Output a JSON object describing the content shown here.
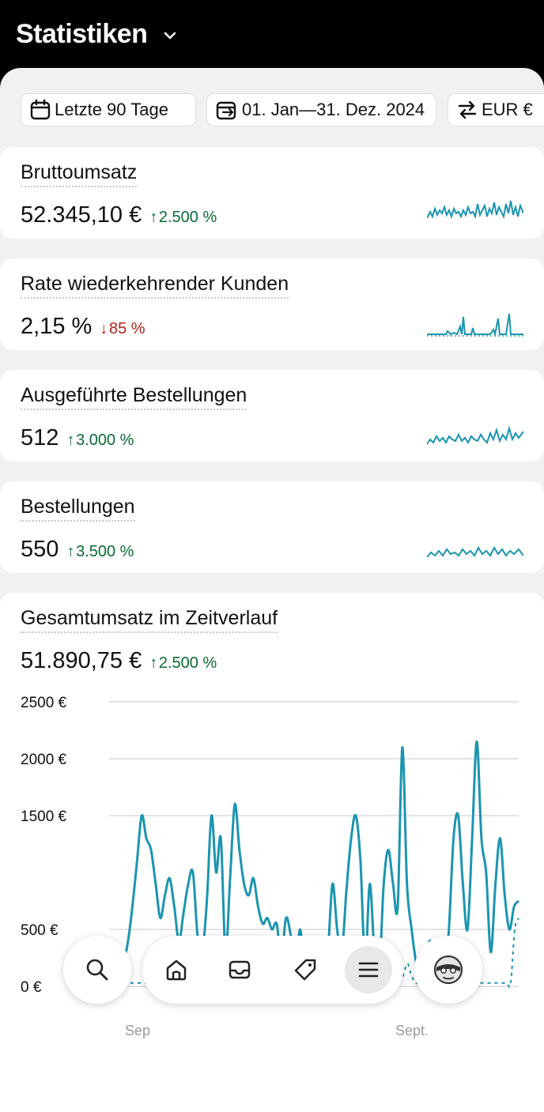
{
  "header": {
    "title": "Statistiken"
  },
  "filters": {
    "range_label": "Letzte 90 Tage",
    "date_label": "01. Jan—31. Dez. 2024",
    "currency_label": "EUR €"
  },
  "cards": [
    {
      "title": "Bruttoumsatz",
      "value": "52.345,10 €",
      "delta": "2.500 %",
      "trend": "up"
    },
    {
      "title": "Rate wiederkehrender Kunden",
      "value": "2,15 %",
      "delta": "85 %",
      "trend": "down"
    },
    {
      "title": "Ausgeführte Bestellungen",
      "value": "512",
      "delta": "3.000 %",
      "trend": "up"
    },
    {
      "title": "Bestellungen",
      "value": "550",
      "delta": "3.500 %",
      "trend": "up"
    }
  ],
  "chart_card": {
    "title": "Gesamtumsatz im Zeitverlauf",
    "value": "51.890,75 €",
    "delta": "2.500 %",
    "trend": "up"
  },
  "chart_data": {
    "type": "line",
    "title": "Gesamtumsatz im Zeitverlauf",
    "ylim": [
      0,
      2500
    ],
    "yticks": [
      "2500 €",
      "2000 €",
      "1500 €",
      "500 €",
      "0 €"
    ],
    "ytick_values": [
      2500,
      2000,
      1500,
      500,
      0
    ],
    "xtick_labels": [
      "Sep",
      "Sept."
    ],
    "grid": true,
    "series": [
      {
        "values": [
          150,
          50,
          80,
          200,
          380,
          700,
          1100,
          1500,
          1300,
          1200,
          900,
          600,
          800,
          950,
          700,
          400,
          650,
          900,
          1000,
          450,
          300,
          750,
          1500,
          1000,
          1300,
          300,
          950,
          1600,
          1200,
          900,
          800,
          950,
          700,
          550,
          600,
          500,
          550,
          250,
          600,
          450,
          150,
          500,
          200,
          400,
          60,
          350,
          50,
          300,
          900,
          500,
          300,
          850,
          1300,
          1500,
          1100,
          200,
          900,
          300,
          100,
          900,
          1200,
          900,
          700,
          2100,
          900,
          500,
          200,
          100,
          200,
          400,
          100,
          150,
          50,
          500,
          1300,
          1500,
          900,
          500,
          1300,
          2150,
          1300,
          1000,
          300,
          900,
          1300,
          800,
          500,
          700,
          750
        ]
      },
      {
        "values": [
          30,
          30,
          30,
          30,
          30,
          30,
          30,
          30,
          30,
          30,
          30,
          80,
          150,
          80,
          200,
          100,
          30,
          30,
          30,
          30,
          30,
          30,
          30,
          30,
          30,
          30,
          30,
          30,
          30,
          30,
          400,
          150,
          30,
          30,
          30,
          30,
          30,
          30,
          30,
          30,
          30,
          30,
          30,
          30,
          30,
          400,
          300,
          200,
          30,
          30,
          30,
          30,
          30,
          30,
          30,
          30,
          30,
          30,
          30,
          30,
          30,
          30,
          30,
          30,
          30,
          30,
          30,
          30,
          30,
          30,
          30,
          30,
          30,
          30,
          100,
          200,
          100,
          30,
          30,
          30,
          30,
          30,
          30,
          30,
          30,
          30,
          80,
          30,
          30,
          30,
          30,
          30,
          30,
          30,
          30,
          30,
          30,
          30,
          30,
          30,
          30,
          30,
          500,
          600
        ]
      }
    ]
  },
  "nav": {
    "search": "search-icon",
    "items": [
      "home-icon",
      "inbox-icon",
      "tag-icon",
      "menu-icon"
    ],
    "avatar": "avatar-icon"
  },
  "colors": {
    "accent": "#1b95b0",
    "positive": "#0a6b35",
    "negative": "#b0241a"
  }
}
